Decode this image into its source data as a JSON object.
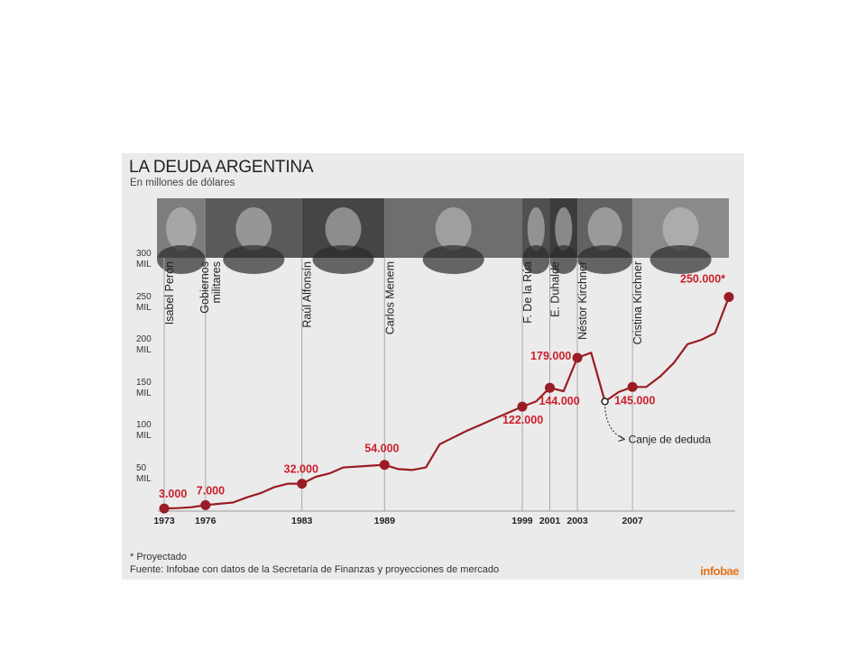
{
  "header": {
    "title": "LA DEUDA ARGENTINA",
    "subtitle": "En millones de dólares"
  },
  "footer": {
    "note": "* Proyectado",
    "source": "Fuente: Infobae con datos de la Secretaría de Finanzas y proyecciones de mercado",
    "brand": "infobae"
  },
  "colors": {
    "line": "#9b1c24",
    "label": "#cc1f2b",
    "background": "#ebebeb",
    "grid": "#a8a8a8"
  },
  "chart_data": {
    "type": "line",
    "title": "LA DEUDA ARGENTINA",
    "ylabel": "En millones de dólares",
    "ylim": [
      0,
      300000
    ],
    "y_ticks": [
      {
        "value": 300000,
        "l1": "300",
        "l2": "MIL"
      },
      {
        "value": 250000,
        "l1": "250",
        "l2": "MIL"
      },
      {
        "value": 200000,
        "l1": "200",
        "l2": "MIL"
      },
      {
        "value": 150000,
        "l1": "150",
        "l2": "MIL"
      },
      {
        "value": 100000,
        "l1": "100",
        "l2": "MIL"
      },
      {
        "value": 50000,
        "l1": "50",
        "l2": "MIL"
      }
    ],
    "x_tick_labels": [
      "1973",
      "1976",
      "1983",
      "1989",
      "1999",
      "2001",
      "2003",
      "2007"
    ],
    "series": [
      {
        "values": [
          [
            1973,
            3000
          ],
          [
            1974,
            3500
          ],
          [
            1975,
            4500
          ],
          [
            1976,
            7000
          ],
          [
            1977,
            8500
          ],
          [
            1978,
            10000
          ],
          [
            1979,
            16000
          ],
          [
            1980,
            21000
          ],
          [
            1981,
            28000
          ],
          [
            1982,
            32000
          ],
          [
            1983,
            32000
          ],
          [
            1984,
            40000
          ],
          [
            1985,
            44000
          ],
          [
            1986,
            51000
          ],
          [
            1987,
            52000
          ],
          [
            1988,
            53000
          ],
          [
            1989,
            54000
          ],
          [
            1990,
            49000
          ],
          [
            1991,
            48000
          ],
          [
            1992,
            51000
          ],
          [
            1993,
            78000
          ],
          [
            1994,
            86000
          ],
          [
            1995,
            94000
          ],
          [
            1996,
            101000
          ],
          [
            1997,
            108000
          ],
          [
            1998,
            115000
          ],
          [
            1999,
            122000
          ],
          [
            2000,
            128000
          ],
          [
            2001,
            144000
          ],
          [
            2002,
            140000
          ],
          [
            2003,
            179000
          ],
          [
            2004,
            185000
          ],
          [
            2005,
            128000
          ],
          [
            2006,
            139000
          ],
          [
            2007,
            145000
          ],
          [
            2008,
            145000
          ],
          [
            2009,
            157000
          ],
          [
            2010,
            173000
          ],
          [
            2011,
            195000
          ],
          [
            2012,
            200000
          ],
          [
            2013,
            208000
          ],
          [
            2014,
            250000
          ]
        ]
      }
    ],
    "markers": [
      {
        "x": 1973,
        "y": 3000,
        "label": "3.000"
      },
      {
        "x": 1976,
        "y": 7000,
        "label": "7.000"
      },
      {
        "x": 1983,
        "y": 32000,
        "label": "32.000"
      },
      {
        "x": 1989,
        "y": 54000,
        "label": "54.000"
      },
      {
        "x": 1999,
        "y": 122000,
        "label": "122.000"
      },
      {
        "x": 2001,
        "y": 144000,
        "label": "144.000"
      },
      {
        "x": 2003,
        "y": 179000,
        "label": "179.000"
      },
      {
        "x": 2007,
        "y": 145000,
        "label": "145.000"
      },
      {
        "x": 2014,
        "y": 250000,
        "label": "250.000*"
      }
    ],
    "periods": [
      {
        "x": 1973,
        "name": "Isabel Perón"
      },
      {
        "x": 1976,
        "name": "Gobiernos\nmilitares"
      },
      {
        "x": 1983,
        "name": "Raúl Alfonsín"
      },
      {
        "x": 1989,
        "name": "Carlos Menem"
      },
      {
        "x": 1999,
        "name": "F. De la Rúa"
      },
      {
        "x": 2001,
        "name": "E. Duhalde"
      },
      {
        "x": 2003,
        "name": "Néstor Kirchner"
      },
      {
        "x": 2007,
        "name": "Cristina Kirchner"
      }
    ],
    "annotations": [
      {
        "x": 2005,
        "y": 128000,
        "text": "Canje de deduda"
      }
    ]
  }
}
